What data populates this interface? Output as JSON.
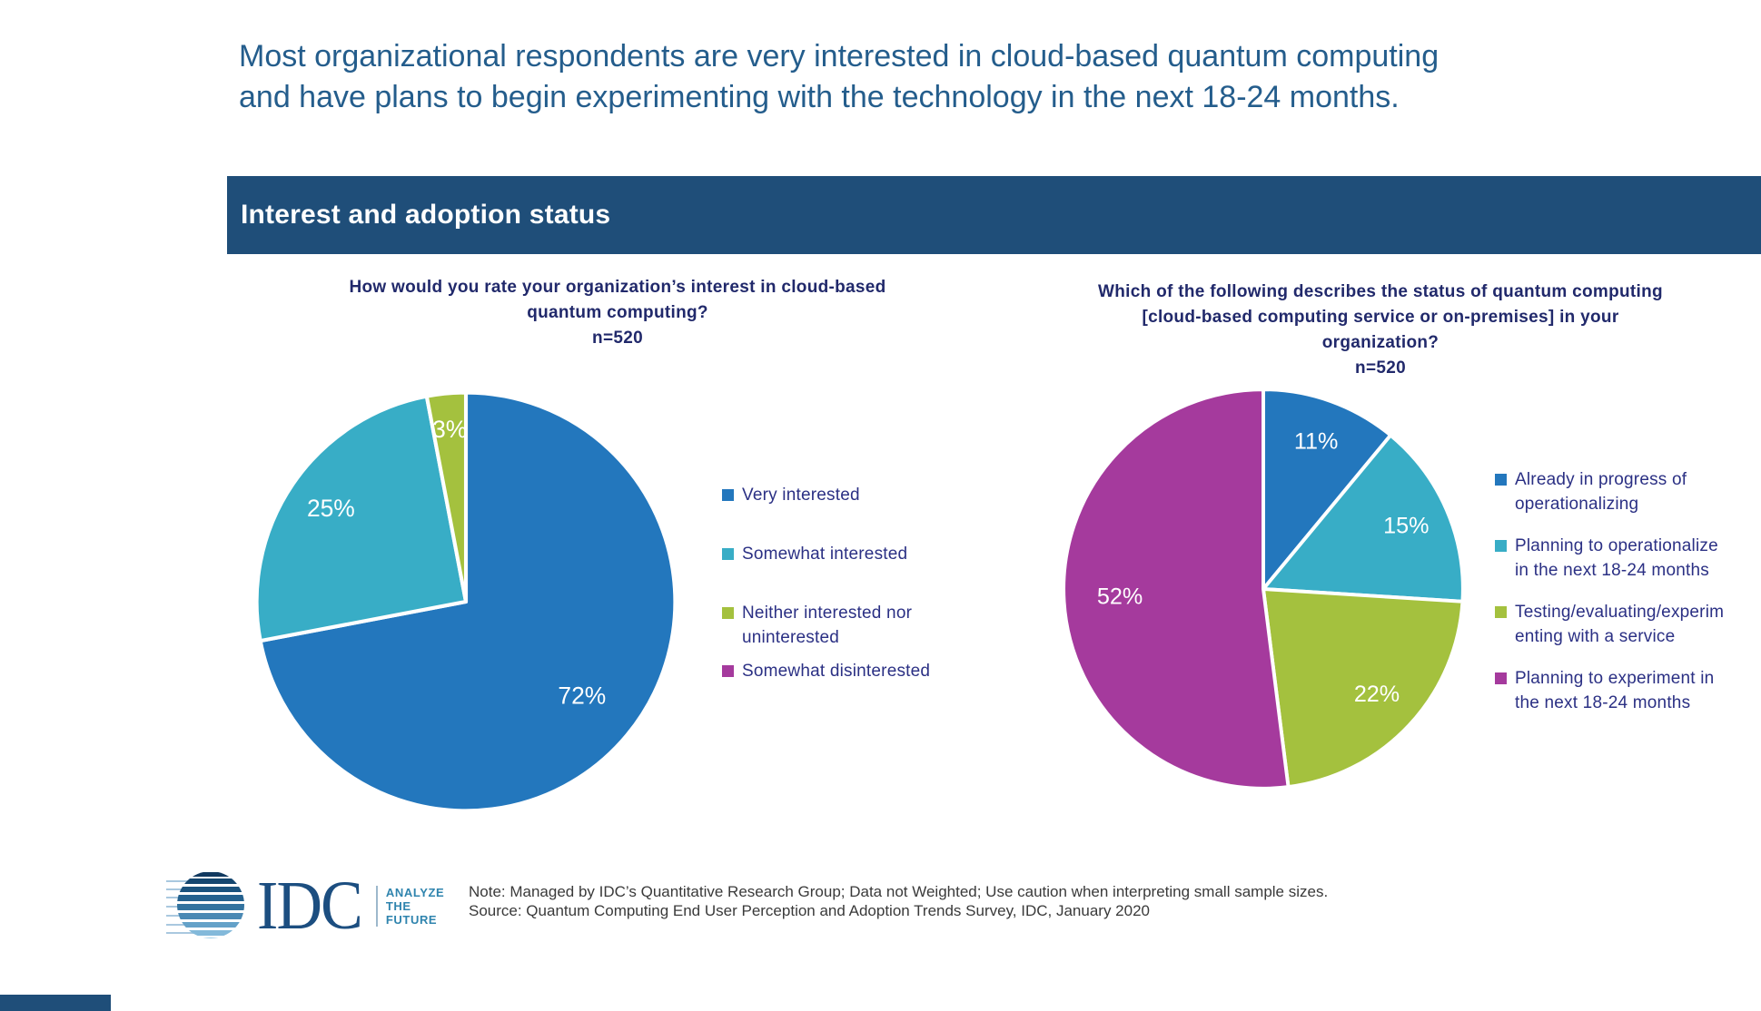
{
  "page": {
    "title_lines": [
      "Most organizational respondents are very interested in cloud-based quantum computing",
      "and have plans to begin experimenting with the technology in the next 18-24 months."
    ],
    "section_banner": "Interest and adoption status",
    "logo": {
      "name": "IDC",
      "tagline_lines": [
        "ANALYZE",
        "THE",
        "FUTURE"
      ]
    },
    "footer": {
      "note": "Note: Managed by IDC’s Quantitative Research Group; Data not Weighted; Use caution when interpreting small sample sizes.",
      "source": "Source: Quantum Computing End User Perception and Adoption Trends Survey, IDC, January 2020"
    }
  },
  "colors": {
    "banner_bg": "#1F4E79",
    "heading_text": "#245D8C",
    "question_text": "#21296B",
    "legend_text": "#2B3084",
    "slice_blue": "#2377BD",
    "slice_teal": "#38ADC6",
    "slice_green": "#A4C13E",
    "slice_magenta": "#A53A9D"
  },
  "chart_data": [
    {
      "type": "pie",
      "title_lines": [
        "How would you rate your organization’s interest in cloud-based",
        "quantum computing?"
      ],
      "sample_size": "n=520",
      "categories": [
        "Very interested",
        "Somewhat interested",
        "Neither interested nor uninterested",
        "Somewhat disinterested"
      ],
      "values": [
        72,
        25,
        3,
        0
      ],
      "unit": "%",
      "colors": [
        "#2377BD",
        "#38ADC6",
        "#A4C13E",
        "#A53A9D"
      ],
      "start_angle_deg": 0,
      "direction": "clockwise",
      "legend_position": "right",
      "legend_lines": [
        [
          "Very interested"
        ],
        [
          "Somewhat interested"
        ],
        [
          "Neither interested nor",
          "uninterested"
        ],
        [
          "Somewhat disinterested"
        ]
      ],
      "slice_label_color": "#FFFFFF",
      "zero_label_color": "#ECEDDA"
    },
    {
      "type": "pie",
      "title_lines": [
        "Which of the following describes the status of quantum computing",
        "[cloud-based computing service or on-premises] in your",
        "organization?"
      ],
      "sample_size": "n=520",
      "categories": [
        "Already in progress of operationalizing",
        "Planning to operationalize in the next 18-24 months",
        "Testing/evaluating/experimenting with a service",
        "Planning to experiment in the next 18-24 months"
      ],
      "values": [
        11,
        15,
        22,
        52
      ],
      "unit": "%",
      "colors": [
        "#2377BD",
        "#38ADC6",
        "#A4C13E",
        "#A53A9D"
      ],
      "start_angle_deg": 0,
      "direction": "clockwise",
      "legend_position": "right",
      "legend_lines": [
        [
          "Already in progress of",
          "operationalizing"
        ],
        [
          "Planning to operationalize",
          "in the next 18-24 months"
        ],
        [
          "Testing/evaluating/experim",
          "enting with a service"
        ],
        [
          "Planning to experiment in",
          "the next 18-24 months"
        ]
      ],
      "slice_label_color": "#FFFFFF",
      "zero_label_color": "#ECEDDA"
    }
  ]
}
